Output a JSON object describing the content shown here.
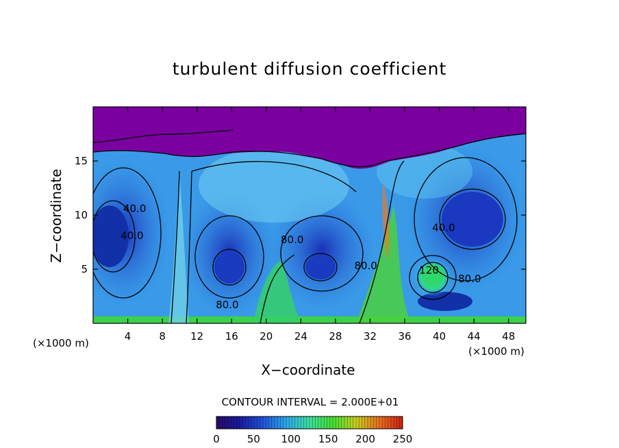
{
  "chart_data": {
    "type": "heatmap",
    "title": "turbulent diffusion coefficient",
    "xlabel": "X−coordinate",
    "ylabel": "Z−coordinate",
    "x_unit": "(×1000 m)",
    "x_unit_right": "(×1000 m)",
    "xlim": [
      0,
      50
    ],
    "ylim": [
      0,
      20
    ],
    "x_ticks": [
      4,
      8,
      12,
      16,
      20,
      24,
      28,
      32,
      36,
      40,
      44,
      48
    ],
    "y_ticks": [
      5,
      10,
      15
    ],
    "contour_interval_text": "CONTOUR INTERVAL = 2.000E+01",
    "contour_interval": 20,
    "contour_labels": [
      {
        "text": "40.0",
        "x": 4.8,
        "z": 10.3
      },
      {
        "text": "40.0",
        "x": 4.5,
        "z": 7.8
      },
      {
        "text": "80.0",
        "x": 15.5,
        "z": 1.4
      },
      {
        "text": "80.0",
        "x": 23.0,
        "z": 7.4
      },
      {
        "text": "80.0",
        "x": 31.5,
        "z": 5.0
      },
      {
        "text": "40.0",
        "x": 40.5,
        "z": 8.5
      },
      {
        "text": "120.",
        "x": 39.0,
        "z": 4.6
      },
      {
        "text": "80.0",
        "x": 43.5,
        "z": 3.8
      }
    ],
    "colorbar": {
      "min": 0,
      "max": 250,
      "ticks": [
        0,
        50,
        100,
        150,
        200,
        250
      ],
      "colors": [
        "#2a0a6a",
        "#1a1aa0",
        "#1f55d8",
        "#2fa8ee",
        "#3ee0a0",
        "#44e030",
        "#c8d020",
        "#e87020",
        "#d02010"
      ]
    },
    "field_colors": {
      "top_layer": "#7a00a0",
      "low": "#1f3fcf",
      "mid": "#2f8fe8",
      "high": "#49c8ee",
      "green": "#33d455",
      "orange": "#f07820"
    }
  }
}
